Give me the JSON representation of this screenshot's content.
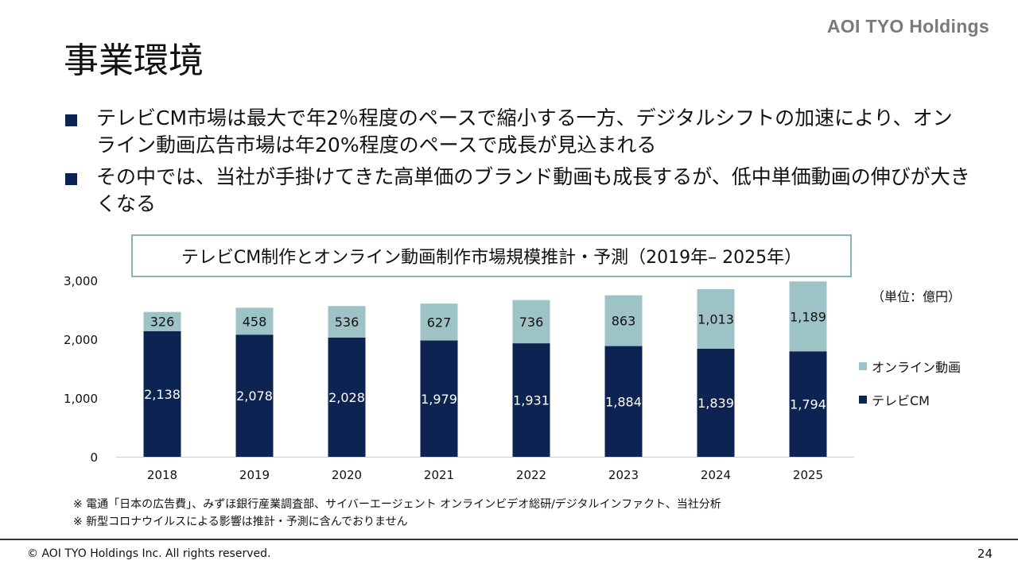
{
  "header": {
    "logo": "AOI TYO Holdings",
    "title": "事業環境"
  },
  "bullets": [
    "テレビCM市場は最大で年2％程度のペースで縮小する一方、デジタルシフトの加速により、オンライン動画広告市場は年20%程度のペースで成長が見込まれる",
    "その中では、当社が手掛けてきた高単価のブランド動画も成長するが、低中単価動画の伸びが大きくなる"
  ],
  "chart_data": {
    "type": "bar",
    "stacked": true,
    "title": "テレビCM制作とオンライン動画制作市場規模推計・予測（2019年– 2025年）",
    "unit": "（単位：億円）",
    "categories": [
      "2018",
      "2019",
      "2020",
      "2021",
      "2022",
      "2023",
      "2024",
      "2025"
    ],
    "series": [
      {
        "name": "テレビCM",
        "values": [
          2138,
          2078,
          2028,
          1979,
          1931,
          1884,
          1839,
          1794
        ],
        "color": "#0d2351",
        "label_color": "#ffffff"
      },
      {
        "name": "オンライン動画",
        "values": [
          326,
          458,
          536,
          627,
          736,
          863,
          1013,
          1189
        ],
        "color": "#9dc3c7",
        "label_color": "#111111"
      }
    ],
    "ylim": [
      0,
      3000
    ],
    "yticks": [
      "0",
      "1,000",
      "2,000",
      "3,000"
    ],
    "ytick_values": [
      0,
      1000,
      2000,
      3000
    ],
    "grid": false,
    "legend_position": "right"
  },
  "notes": [
    "※ 電通「日本の広告費」、みずほ銀行産業調査部、サイバーエージェント オンラインビデオ総研/デジタルインファクト、当社分析",
    "※ 新型コロナウイルスによる影響は推計・予測に含んでおりません"
  ],
  "footer": {
    "copyright": "© AOI TYO Holdings Inc. All rights reserved.",
    "page": "24"
  }
}
